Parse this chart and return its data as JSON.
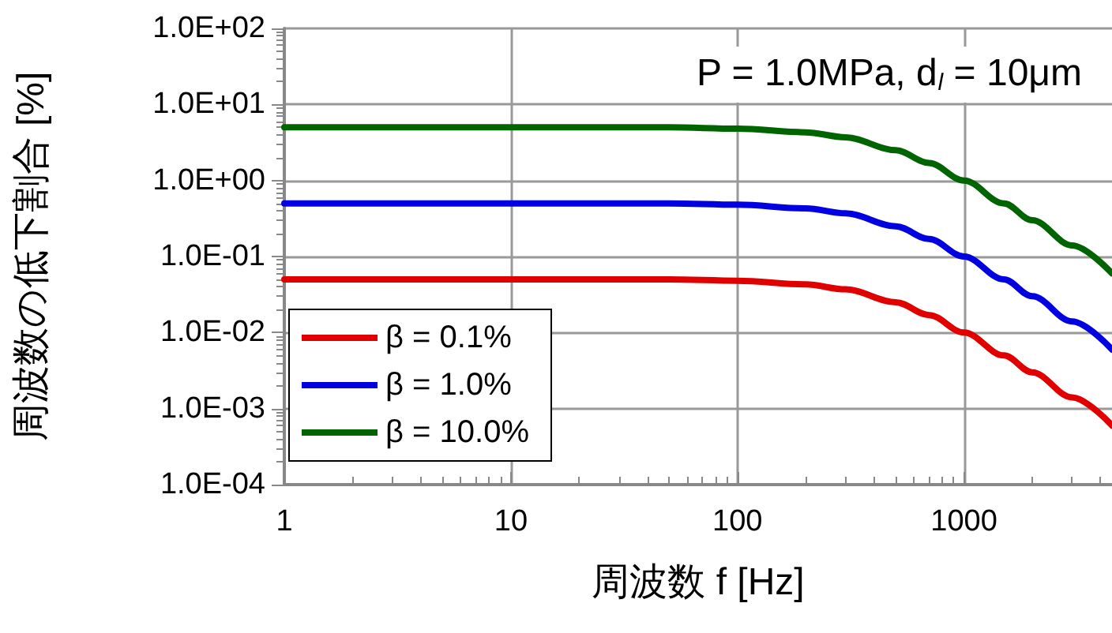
{
  "chart_data": {
    "type": "line",
    "title": "P = 1.0MPa, d$_{l}$ = 10μm",
    "xlabel": "周波数 f [Hz]",
    "ylabel": "周波数の低下割合 [%]",
    "x": [
      1,
      10,
      50,
      100,
      200,
      300,
      500,
      700,
      1000,
      1500,
      2000,
      3000,
      4500
    ],
    "series": [
      {
        "name": "β = 0.1%",
        "color": "#e00000",
        "values": [
          0.05,
          0.05,
          0.05,
          0.048,
          0.043,
          0.037,
          0.025,
          0.017,
          0.01,
          0.005,
          0.003,
          0.0014,
          0.0006
        ]
      },
      {
        "name": "β = 1.0%",
        "color": "#0000e0",
        "values": [
          0.5,
          0.5,
          0.5,
          0.48,
          0.43,
          0.37,
          0.25,
          0.17,
          0.1,
          0.05,
          0.03,
          0.014,
          0.006
        ]
      },
      {
        "name": "β = 10.0%",
        "color": "#006400",
        "values": [
          5,
          5,
          5,
          4.8,
          4.3,
          3.7,
          2.5,
          1.7,
          1,
          0.5,
          0.3,
          0.14,
          0.06
        ]
      }
    ],
    "log": "xy",
    "xlim": [
      1,
      4500
    ],
    "xticks": [
      1,
      10,
      100,
      1000
    ],
    "ylim": [
      0.0001,
      100
    ],
    "yticks": [
      {
        "value": 0.0001,
        "label": "1.0E-04"
      },
      {
        "value": 0.001,
        "label": "1.0E-03"
      },
      {
        "value": 0.01,
        "label": "1.0E-02"
      },
      {
        "value": 0.1,
        "label": "1.0E-01"
      },
      {
        "value": 1,
        "label": "1.0E+00"
      },
      {
        "value": 10,
        "label": "1.0E+01"
      },
      {
        "value": 100,
        "label": "1.0E+02"
      }
    ],
    "grid": true,
    "legend": "bottom left",
    "marker": "none",
    "line_style": "solid"
  }
}
